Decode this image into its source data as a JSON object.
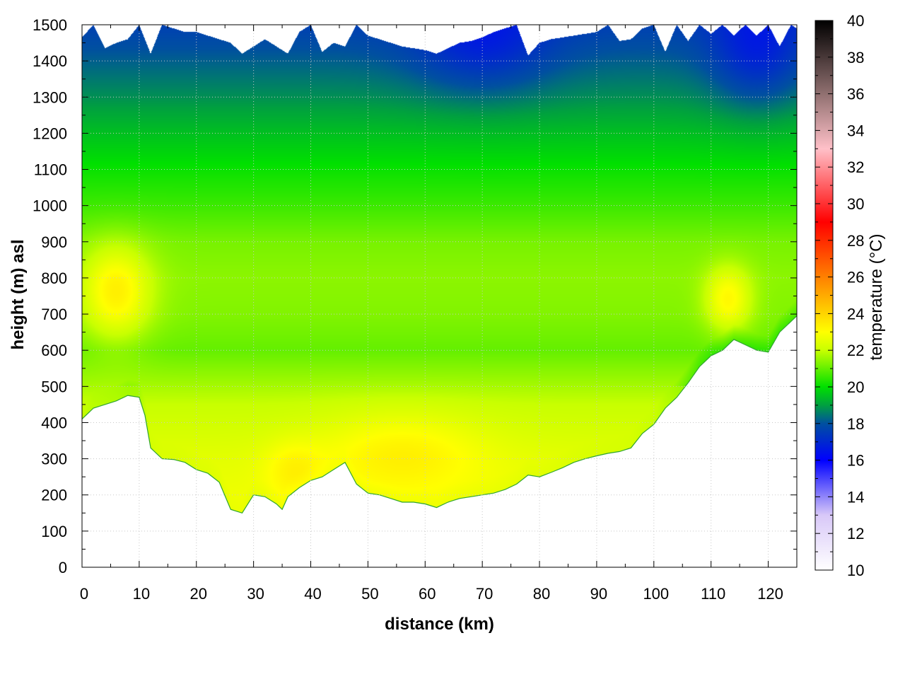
{
  "chart_data": {
    "type": "heatmap",
    "title": "",
    "xlabel": "distance (km)",
    "ylabel": "height (m) asl",
    "colorbar_label": "temperature (°C)",
    "xlim": [
      0,
      125
    ],
    "ylim": [
      0,
      1500
    ],
    "clim": [
      10,
      40
    ],
    "x_ticks": [
      "0",
      "10",
      "20",
      "30",
      "40",
      "50",
      "60",
      "70",
      "80",
      "90",
      "100",
      "110",
      "120"
    ],
    "y_ticks": [
      "0",
      "100",
      "200",
      "300",
      "400",
      "500",
      "600",
      "700",
      "800",
      "900",
      "1000",
      "1100",
      "1200",
      "1300",
      "1400",
      "1500"
    ],
    "colorbar_ticks": [
      "10",
      "12",
      "14",
      "16",
      "18",
      "20",
      "22",
      "24",
      "26",
      "28",
      "30",
      "32",
      "34",
      "36",
      "38",
      "40"
    ],
    "grid": true,
    "colormap": [
      {
        "t": 10,
        "color": "#ffffff"
      },
      {
        "t": 13,
        "color": "#d8c8f8"
      },
      {
        "t": 16,
        "color": "#0000ff"
      },
      {
        "t": 18,
        "color": "#0050a0"
      },
      {
        "t": 19,
        "color": "#00a040"
      },
      {
        "t": 20,
        "color": "#00e000"
      },
      {
        "t": 22,
        "color": "#c8ff00"
      },
      {
        "t": 23,
        "color": "#ffff00"
      },
      {
        "t": 26,
        "color": "#ff8000"
      },
      {
        "t": 29,
        "color": "#ff0000"
      },
      {
        "t": 33,
        "color": "#ffc0c8"
      },
      {
        "t": 36,
        "color": "#907070"
      },
      {
        "t": 40,
        "color": "#000000"
      }
    ],
    "terrain": {
      "distance_km": [
        0,
        2,
        4,
        6,
        8,
        10,
        11,
        12,
        14,
        16,
        18,
        20,
        22,
        24,
        26,
        28,
        30,
        32,
        34,
        35,
        36,
        38,
        40,
        42,
        44,
        46,
        48,
        50,
        52,
        54,
        56,
        58,
        60,
        62,
        64,
        66,
        68,
        70,
        72,
        74,
        76,
        78,
        80,
        82,
        84,
        86,
        88,
        90,
        92,
        94,
        96,
        98,
        100,
        102,
        104,
        106,
        108,
        110,
        112,
        114,
        116,
        118,
        120,
        122,
        124,
        125
      ],
      "height_m": [
        410,
        440,
        450,
        460,
        475,
        470,
        420,
        330,
        300,
        298,
        290,
        270,
        260,
        235,
        160,
        150,
        200,
        195,
        175,
        160,
        195,
        220,
        240,
        250,
        270,
        290,
        230,
        205,
        200,
        190,
        180,
        180,
        175,
        165,
        180,
        190,
        195,
        200,
        205,
        215,
        230,
        255,
        250,
        262,
        275,
        290,
        300,
        308,
        315,
        320,
        330,
        370,
        395,
        440,
        470,
        510,
        555,
        585,
        600,
        630,
        615,
        600,
        595,
        650,
        680,
        695
      ]
    },
    "cap": {
      "distance_km": [
        0,
        2,
        4,
        6,
        8,
        10,
        12,
        14,
        16,
        18,
        20,
        22,
        24,
        26,
        28,
        30,
        32,
        34,
        36,
        38,
        40,
        42,
        44,
        46,
        48,
        50,
        52,
        54,
        56,
        58,
        60,
        62,
        64,
        66,
        68,
        70,
        72,
        74,
        76,
        78,
        80,
        82,
        84,
        86,
        88,
        90,
        92,
        94,
        96,
        98,
        100,
        102,
        104,
        106,
        108,
        110,
        112,
        114,
        116,
        118,
        120,
        122,
        124,
        125
      ],
      "height_m": [
        1465,
        1500,
        1435,
        1450,
        1460,
        1500,
        1420,
        1500,
        1490,
        1480,
        1480,
        1470,
        1460,
        1450,
        1420,
        1440,
        1460,
        1440,
        1420,
        1480,
        1500,
        1425,
        1450,
        1440,
        1500,
        1470,
        1460,
        1450,
        1440,
        1435,
        1430,
        1420,
        1435,
        1450,
        1455,
        1465,
        1480,
        1490,
        1500,
        1415,
        1450,
        1460,
        1465,
        1470,
        1475,
        1480,
        1500,
        1455,
        1460,
        1490,
        1500,
        1425,
        1500,
        1455,
        1500,
        1475,
        1500,
        1470,
        1500,
        1470,
        1500,
        1440,
        1500,
        1490
      ]
    },
    "temperature_profile": {
      "height_m": [
        0,
        150,
        300,
        450,
        600,
        700,
        800,
        900,
        1000,
        1100,
        1200,
        1300,
        1400,
        1500
      ],
      "temperature_c": [
        23.0,
        22.8,
        22.5,
        22.0,
        21.0,
        21.3,
        21.4,
        21.2,
        20.6,
        20.1,
        19.5,
        18.8,
        18.2,
        17.6
      ]
    },
    "warm_zones": [
      {
        "x_km": 6,
        "y_m": 760,
        "dx_km": 6,
        "dy_m": 130,
        "delta_c": 2.0
      },
      {
        "x_km": 113,
        "y_m": 740,
        "dx_km": 4,
        "dy_m": 90,
        "delta_c": 1.8
      },
      {
        "x_km": 56,
        "y_m": 320,
        "dx_km": 14,
        "dy_m": 110,
        "delta_c": 0.9
      },
      {
        "x_km": 37,
        "y_m": 270,
        "dx_km": 5,
        "dy_m": 80,
        "delta_c": 0.7
      }
    ],
    "cool_zones": [
      {
        "x_km": 70,
        "y_m": 1450,
        "dx_km": 12,
        "dy_m": 150,
        "delta_c": -1.2
      },
      {
        "x_km": 118,
        "y_m": 1420,
        "dx_km": 8,
        "dy_m": 160,
        "delta_c": -1.3
      }
    ]
  }
}
